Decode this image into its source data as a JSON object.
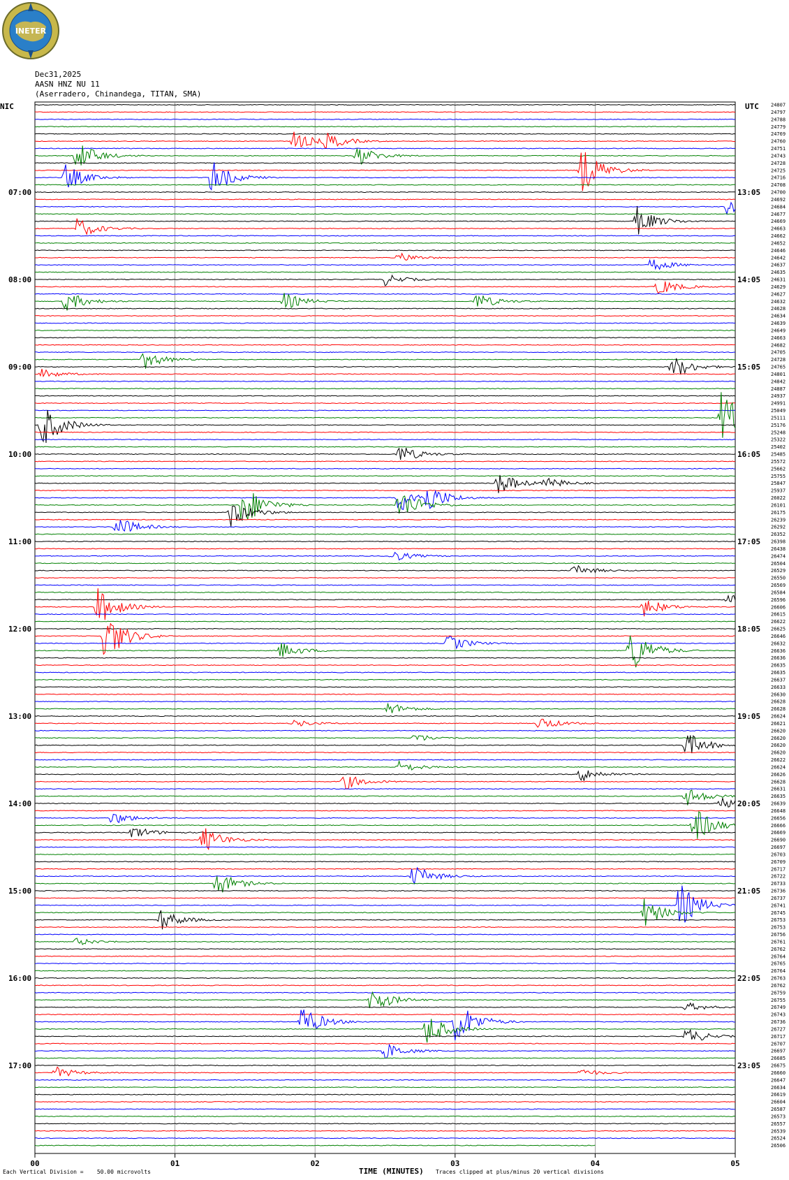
{
  "header": {
    "logo_text": "INETER",
    "date": "Dec31,2025",
    "station": "AASN HNZ NU 11",
    "location": "(Aserradero, Chinandega, TITAN, SMA)",
    "left_tz": "NIC",
    "right_tz": "UTC"
  },
  "footer": {
    "scale_note": "Each Vertical Division =    50.00 microvolts",
    "clip_note": "Traces clipped at plus/minus 20 vertical divisions"
  },
  "colors": {
    "trace_cycle": [
      "#000000",
      "#ff0000",
      "#0000ff",
      "#008000"
    ],
    "grid": "#888888",
    "frame": "#000000"
  },
  "chart_data": {
    "type": "line",
    "subtype": "helicorder",
    "xlabel": "TIME (MINUTES)",
    "x_ticks": [
      "00",
      "01",
      "02",
      "03",
      "04",
      "05"
    ],
    "xlim": [
      0,
      5
    ],
    "trace_count": 144,
    "minutes_per_trace": 5,
    "left_hour_labels": [
      "07:00",
      "08:00",
      "09:00",
      "10:00",
      "11:00",
      "12:00",
      "13:00",
      "14:00",
      "15:00",
      "16:00",
      "17:00"
    ],
    "right_hour_labels": [
      "13:05",
      "14:05",
      "15:05",
      "16:05",
      "17:05",
      "18:05",
      "19:05",
      "20:05",
      "21:05",
      "22:05",
      "23:05"
    ],
    "hour_label_first_trace": 12,
    "trace_values": [
      "24807",
      "24797",
      "24788",
      "24779",
      "24769",
      "24760",
      "24751",
      "24743",
      "24728",
      "24725",
      "24716",
      "24708",
      "24700",
      "24692",
      "24684",
      "24677",
      "24669",
      "24663",
      "24662",
      "24652",
      "24646",
      "24642",
      "24637",
      "24635",
      "24631",
      "24629",
      "24627",
      "24632",
      "24628",
      "24634",
      "24639",
      "24649",
      "24663",
      "24682",
      "24705",
      "24728",
      "24765",
      "24801",
      "24842",
      "24887",
      "24937",
      "24991",
      "25049",
      "25111",
      "25176",
      "25248",
      "25322",
      "25402",
      "25485",
      "25572",
      "25662",
      "25755",
      "25847",
      "25937",
      "26022",
      "26101",
      "26175",
      "26239",
      "26292",
      "26352",
      "26398",
      "26438",
      "26474",
      "26504",
      "26529",
      "26550",
      "26569",
      "26584",
      "26596",
      "26606",
      "26615",
      "26622",
      "26625",
      "26646",
      "26632",
      "26636",
      "26636",
      "26635",
      "26635",
      "26637",
      "26633",
      "26630",
      "26628",
      "26628",
      "26624",
      "26621",
      "26620",
      "26620",
      "26620",
      "26620",
      "26622",
      "26624",
      "26626",
      "26628",
      "26631",
      "26635",
      "26639",
      "26648",
      "26656",
      "26666",
      "26669",
      "26690",
      "26697",
      "26703",
      "26709",
      "26717",
      "26722",
      "26733",
      "26736",
      "26737",
      "26741",
      "26745",
      "26753",
      "26753",
      "26756",
      "26761",
      "26762",
      "26764",
      "26765",
      "26764",
      "26763",
      "26762",
      "26759",
      "26755",
      "26749",
      "26743",
      "26736",
      "26727",
      "26717",
      "26707",
      "26697",
      "26685",
      "26675",
      "26660",
      "26647",
      "26634",
      "26619",
      "26604",
      "26587",
      "26573",
      "26557",
      "26539",
      "26524",
      "26506"
    ],
    "events": [
      {
        "trace": 5,
        "minute": 1.85,
        "amp": 1.0
      },
      {
        "trace": 5,
        "minute": 2.08,
        "amp": 0.8
      },
      {
        "trace": 7,
        "minute": 0.3,
        "amp": 1.6
      },
      {
        "trace": 7,
        "minute": 2.3,
        "amp": 1.1
      },
      {
        "trace": 9,
        "minute": 3.9,
        "amp": 2.6
      },
      {
        "trace": 10,
        "minute": 0.22,
        "amp": 1.4
      },
      {
        "trace": 10,
        "minute": 1.25,
        "amp": 2.0
      },
      {
        "trace": 14,
        "minute": 4.95,
        "amp": 1.2
      },
      {
        "trace": 16,
        "minute": 4.3,
        "amp": 1.5
      },
      {
        "trace": 17,
        "minute": 0.3,
        "amp": 1.1
      },
      {
        "trace": 21,
        "minute": 2.6,
        "amp": 0.5
      },
      {
        "trace": 22,
        "minute": 4.4,
        "amp": 0.7
      },
      {
        "trace": 24,
        "minute": 2.5,
        "amp": 0.6
      },
      {
        "trace": 25,
        "minute": 4.45,
        "amp": 0.9
      },
      {
        "trace": 27,
        "minute": 0.22,
        "amp": 1.1
      },
      {
        "trace": 27,
        "minute": 1.78,
        "amp": 0.9
      },
      {
        "trace": 27,
        "minute": 3.15,
        "amp": 0.9
      },
      {
        "trace": 35,
        "minute": 0.78,
        "amp": 1.0
      },
      {
        "trace": 36,
        "minute": 4.55,
        "amp": 1.3
      },
      {
        "trace": 37,
        "minute": 0.05,
        "amp": 0.5
      },
      {
        "trace": 43,
        "minute": 4.9,
        "amp": 3.0
      },
      {
        "trace": 44,
        "minute": 0.05,
        "amp": 2.4
      },
      {
        "trace": 48,
        "minute": 2.6,
        "amp": 1.0
      },
      {
        "trace": 52,
        "minute": 3.3,
        "amp": 1.3
      },
      {
        "trace": 52,
        "minute": 3.65,
        "amp": 0.6
      },
      {
        "trace": 54,
        "minute": 2.6,
        "amp": 1.6
      },
      {
        "trace": 54,
        "minute": 2.8,
        "amp": 1.3
      },
      {
        "trace": 55,
        "minute": 1.48,
        "amp": 2.5
      },
      {
        "trace": 55,
        "minute": 2.6,
        "amp": 1.8
      },
      {
        "trace": 56,
        "minute": 1.4,
        "amp": 1.6
      },
      {
        "trace": 58,
        "minute": 0.58,
        "amp": 1.2
      },
      {
        "trace": 62,
        "minute": 2.55,
        "amp": 0.6
      },
      {
        "trace": 64,
        "minute": 3.85,
        "amp": 0.6
      },
      {
        "trace": 68,
        "minute": 4.95,
        "amp": 0.8
      },
      {
        "trace": 69,
        "minute": 4.35,
        "amp": 1.0
      },
      {
        "trace": 69,
        "minute": 0.45,
        "amp": 2.0
      },
      {
        "trace": 73,
        "minute": 0.5,
        "amp": 2.8
      },
      {
        "trace": 74,
        "minute": 2.95,
        "amp": 0.9
      },
      {
        "trace": 75,
        "minute": 1.75,
        "amp": 0.9
      },
      {
        "trace": 75,
        "minute": 4.25,
        "amp": 2.6
      },
      {
        "trace": 83,
        "minute": 2.52,
        "amp": 0.7
      },
      {
        "trace": 85,
        "minute": 1.85,
        "amp": 0.4
      },
      {
        "trace": 85,
        "minute": 3.6,
        "amp": 0.7
      },
      {
        "trace": 87,
        "minute": 2.7,
        "amp": 0.5
      },
      {
        "trace": 88,
        "minute": 4.65,
        "amp": 1.4
      },
      {
        "trace": 91,
        "minute": 2.6,
        "amp": 0.6
      },
      {
        "trace": 92,
        "minute": 3.9,
        "amp": 0.8
      },
      {
        "trace": 93,
        "minute": 2.2,
        "amp": 0.9
      },
      {
        "trace": 95,
        "minute": 4.65,
        "amp": 1.0
      },
      {
        "trace": 96,
        "minute": 4.9,
        "amp": 0.6
      },
      {
        "trace": 98,
        "minute": 0.55,
        "amp": 0.7
      },
      {
        "trace": 99,
        "minute": 4.7,
        "amp": 2.0
      },
      {
        "trace": 100,
        "minute": 0.7,
        "amp": 0.7
      },
      {
        "trace": 101,
        "minute": 1.2,
        "amp": 1.4
      },
      {
        "trace": 106,
        "minute": 2.7,
        "amp": 1.2
      },
      {
        "trace": 107,
        "minute": 1.3,
        "amp": 1.3
      },
      {
        "trace": 110,
        "minute": 4.6,
        "amp": 2.4
      },
      {
        "trace": 112,
        "minute": 0.9,
        "amp": 1.1
      },
      {
        "trace": 111,
        "minute": 4.35,
        "amp": 1.5
      },
      {
        "trace": 115,
        "minute": 0.3,
        "amp": 0.4
      },
      {
        "trace": 123,
        "minute": 2.4,
        "amp": 1.4
      },
      {
        "trace": 124,
        "minute": 4.65,
        "amp": 0.5
      },
      {
        "trace": 126,
        "minute": 1.9,
        "amp": 1.8
      },
      {
        "trace": 126,
        "minute": 3.0,
        "amp": 2.6
      },
      {
        "trace": 127,
        "minute": 2.8,
        "amp": 1.7
      },
      {
        "trace": 128,
        "minute": 4.65,
        "amp": 0.9
      },
      {
        "trace": 130,
        "minute": 2.5,
        "amp": 0.9
      },
      {
        "trace": 133,
        "minute": 0.15,
        "amp": 0.6
      },
      {
        "trace": 133,
        "minute": 3.9,
        "amp": 0.4
      }
    ]
  }
}
